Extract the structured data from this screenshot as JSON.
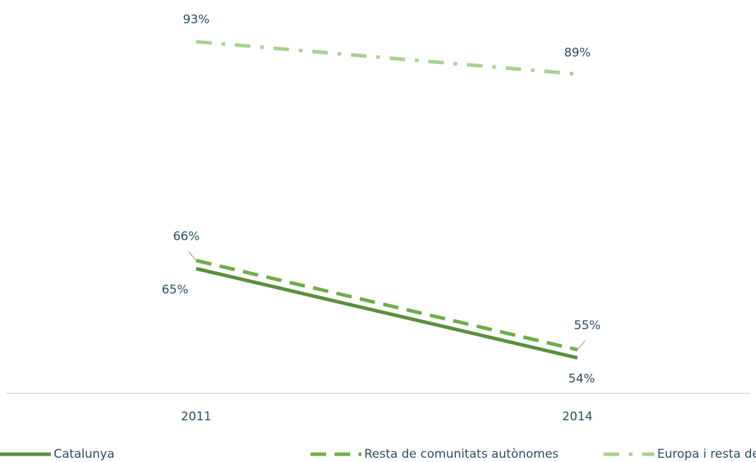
{
  "chart_data": {
    "type": "line",
    "categories": [
      "2011",
      "2014"
    ],
    "series": [
      {
        "name": "Catalunya",
        "color": "#5b8f3c",
        "dash": "solid",
        "values": [
          65,
          54
        ],
        "value_labels": [
          "65%",
          "54%"
        ]
      },
      {
        "name": "Resta de comunitats autònomes",
        "color": "#70ad47",
        "dash": "dash",
        "values": [
          66,
          55
        ],
        "value_labels": [
          "66%",
          "55%"
        ]
      },
      {
        "name": "Europa i resta del món",
        "color": "#a9d18e",
        "dash": "dashdot",
        "values": [
          93,
          89
        ],
        "value_labels": [
          "93%",
          "89%"
        ]
      }
    ],
    "ylim": [
      49.6,
      95
    ],
    "legend": "bottom"
  }
}
